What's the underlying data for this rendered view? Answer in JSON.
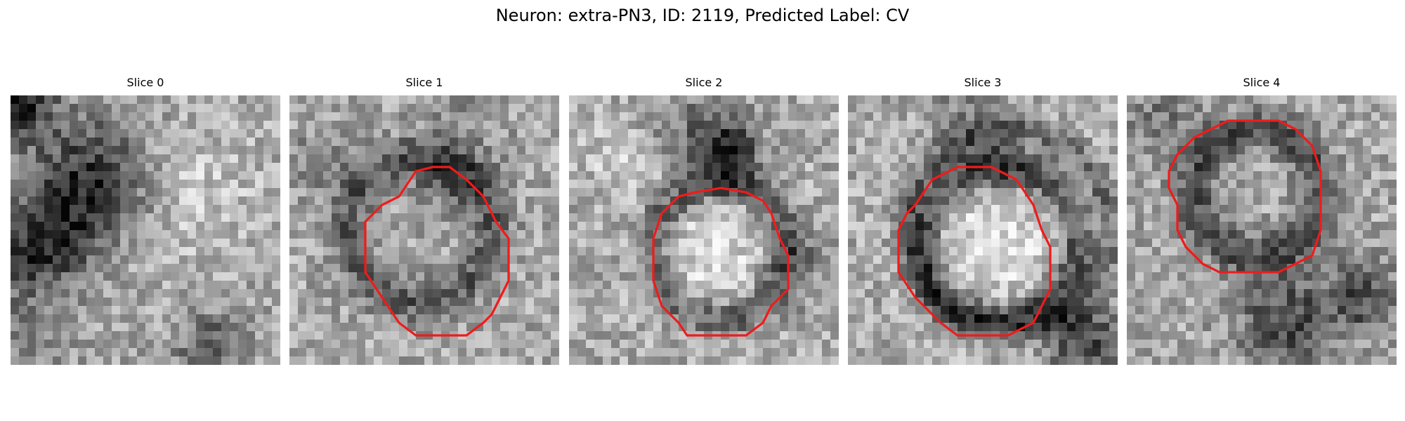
{
  "figure": {
    "title": "Neuron: extra-PN3, ID: 2119, Predicted Label: CV"
  },
  "panels": [
    {
      "title": "Slice 0",
      "contour": false
    },
    {
      "title": "Slice 1",
      "contour": true
    },
    {
      "title": "Slice 2",
      "contour": true
    },
    {
      "title": "Slice 3",
      "contour": true
    },
    {
      "title": "Slice 4",
      "contour": true
    }
  ],
  "style": {
    "contour_color": "#ee1c1c",
    "colormap": "gray"
  }
}
